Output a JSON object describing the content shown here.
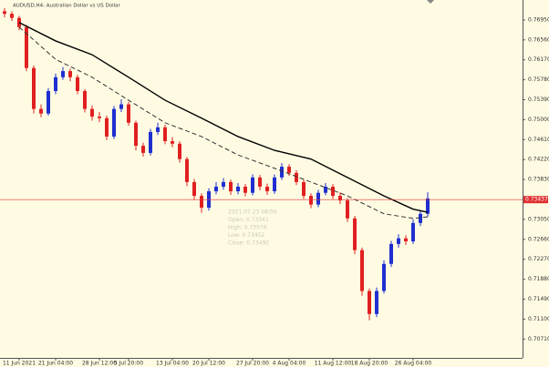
{
  "chart_data": {
    "type": "candlestick",
    "title": "AUDUSD,H4:  Australian Dollar vs US Dollar",
    "ylim": [
      0.7036,
      0.7734
    ],
    "yticks": [
      {
        "value": 0.7695,
        "label": "0.76950"
      },
      {
        "value": 0.7656,
        "label": "0.76560"
      },
      {
        "value": 0.7617,
        "label": "0.76170"
      },
      {
        "value": 0.7578,
        "label": "0.75780"
      },
      {
        "value": 0.7539,
        "label": "0.75390"
      },
      {
        "value": 0.75,
        "label": "0.75000"
      },
      {
        "value": 0.7461,
        "label": "0.74610"
      },
      {
        "value": 0.7422,
        "label": "0.74220"
      },
      {
        "value": 0.7383,
        "label": "0.73830"
      },
      {
        "value": 0.7305,
        "label": "0.73050"
      },
      {
        "value": 0.7266,
        "label": "0.72660"
      },
      {
        "value": 0.7227,
        "label": "0.72270"
      },
      {
        "value": 0.7188,
        "label": "0.71880"
      },
      {
        "value": 0.7149,
        "label": "0.71490"
      },
      {
        "value": 0.711,
        "label": "0.71100"
      },
      {
        "value": 0.7071,
        "label": "0.70710"
      }
    ],
    "xlabels": [
      {
        "index": 2,
        "label": "11 Jun 2021"
      },
      {
        "index": 7,
        "label": "21 Jun 04:00"
      },
      {
        "index": 13,
        "label": "28 Jun 12:00"
      },
      {
        "index": 17,
        "label": "5 Jul 20:00"
      },
      {
        "index": 23,
        "label": "13 Jul 04:00"
      },
      {
        "index": 28,
        "label": "20 Jul 12:00"
      },
      {
        "index": 34,
        "label": "27 Jul 20:00"
      },
      {
        "index": 39,
        "label": "4 Aug 04:00"
      },
      {
        "index": 45,
        "label": "11 Aug 12:00"
      },
      {
        "index": 50,
        "label": "18 Aug 20:00"
      },
      {
        "index": 56,
        "label": "26 Aug 04:00"
      }
    ],
    "up_color": "#1f2fd0",
    "down_color": "#e02020",
    "open": [
      0.7712,
      0.7707,
      0.7699,
      0.7681,
      0.7601,
      0.7521,
      0.7512,
      0.7556,
      0.7583,
      0.7595,
      0.7583,
      0.7556,
      0.7521,
      0.7506,
      0.7503,
      0.7467,
      0.7521,
      0.753,
      0.7494,
      0.7449,
      0.7435,
      0.7476,
      0.7485,
      0.7458,
      0.7453,
      0.7423,
      0.7378,
      0.7351,
      0.7328,
      0.736,
      0.7369,
      0.7378,
      0.736,
      0.7369,
      0.7357,
      0.7387,
      0.7369,
      0.736,
      0.7387,
      0.7408,
      0.7396,
      0.7378,
      0.7351,
      0.7334,
      0.7357,
      0.7369,
      0.7351,
      0.7342,
      0.7307,
      0.7245,
      0.7165,
      0.712,
      0.7165,
      0.7218,
      0.7257,
      0.7268,
      0.7262,
      0.7298,
      0.7316
    ],
    "high": [
      0.7718,
      0.7712,
      0.7703,
      0.7685,
      0.7606,
      0.753,
      0.7562,
      0.759,
      0.7603,
      0.76,
      0.7588,
      0.756,
      0.7528,
      0.7515,
      0.7508,
      0.7527,
      0.754,
      0.7535,
      0.7498,
      0.7455,
      0.7482,
      0.7494,
      0.749,
      0.7466,
      0.7458,
      0.7427,
      0.7384,
      0.7356,
      0.7366,
      0.7378,
      0.7386,
      0.7383,
      0.7376,
      0.7374,
      0.7393,
      0.7392,
      0.7375,
      0.7393,
      0.7415,
      0.7413,
      0.7401,
      0.7383,
      0.7356,
      0.7363,
      0.7376,
      0.7374,
      0.7358,
      0.7347,
      0.7312,
      0.725,
      0.717,
      0.7172,
      0.7225,
      0.7263,
      0.7276,
      0.7274,
      0.7305,
      0.7322,
      0.7358
    ],
    "low": [
      0.77,
      0.7693,
      0.7675,
      0.7595,
      0.7512,
      0.7505,
      0.7508,
      0.755,
      0.7578,
      0.7575,
      0.755,
      0.7514,
      0.7498,
      0.7495,
      0.746,
      0.7462,
      0.7515,
      0.7488,
      0.744,
      0.7428,
      0.743,
      0.747,
      0.7452,
      0.7446,
      0.7416,
      0.737,
      0.7343,
      0.7318,
      0.7322,
      0.7354,
      0.7363,
      0.7353,
      0.7354,
      0.735,
      0.7352,
      0.7362,
      0.7353,
      0.7355,
      0.7382,
      0.739,
      0.7372,
      0.7345,
      0.7327,
      0.7329,
      0.7352,
      0.7345,
      0.7335,
      0.73,
      0.7237,
      0.7156,
      0.7108,
      0.7114,
      0.716,
      0.7212,
      0.725,
      0.7255,
      0.7257,
      0.7292,
      0.731
    ],
    "close": [
      0.7707,
      0.7699,
      0.7681,
      0.7601,
      0.7521,
      0.7512,
      0.7556,
      0.7583,
      0.7595,
      0.7583,
      0.7556,
      0.7521,
      0.7506,
      0.7503,
      0.7467,
      0.7521,
      0.753,
      0.7494,
      0.7449,
      0.7435,
      0.7476,
      0.7485,
      0.7458,
      0.7453,
      0.7423,
      0.7378,
      0.7351,
      0.7328,
      0.736,
      0.7369,
      0.7378,
      0.736,
      0.7369,
      0.7357,
      0.7387,
      0.7369,
      0.736,
      0.7387,
      0.7408,
      0.7396,
      0.7378,
      0.7351,
      0.7334,
      0.7357,
      0.7369,
      0.7351,
      0.7342,
      0.7307,
      0.7245,
      0.7165,
      0.712,
      0.7165,
      0.7218,
      0.7257,
      0.7268,
      0.7262,
      0.7298,
      0.7316,
      0.7346
    ],
    "ma_index": [
      2,
      7,
      12,
      17,
      22,
      27,
      32,
      37,
      42,
      47,
      52,
      56,
      58
    ],
    "ma_series": [
      {
        "color": "#000000",
        "dashed": false,
        "values": [
          0.769,
          0.7654,
          0.7627,
          0.7583,
          0.7538,
          0.7503,
          0.7467,
          0.744,
          0.7423,
          0.7387,
          0.7351,
          0.7325,
          0.7319
        ]
      },
      {
        "color": "#333333",
        "dashed": true,
        "values": [
          0.7681,
          0.7618,
          0.7583,
          0.7538,
          0.7494,
          0.7467,
          0.7431,
          0.7405,
          0.7378,
          0.7351,
          0.7316,
          0.7307,
          0.731
        ]
      }
    ],
    "last_price": {
      "value": 0.73437,
      "label": "0.73437",
      "color": "#e03030"
    },
    "info_box": [
      "2021.07.23 08:00",
      "Open: 0.73541",
      "High: 0.73576",
      "Low: 0.73452",
      "Close: 0.73492"
    ]
  }
}
